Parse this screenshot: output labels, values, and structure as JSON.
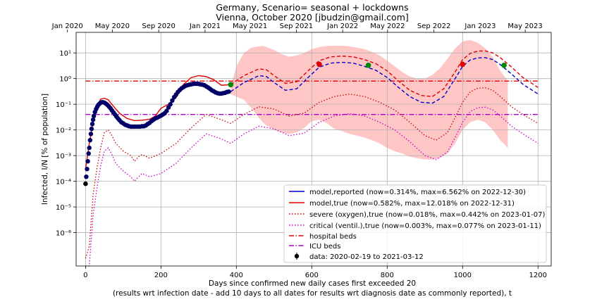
{
  "chart_data": {
    "type": "line",
    "title": "Germany, Scenario= seasonal + lockdowns",
    "subtitle": "Vienna, October 2020 [jbudzin@gmail.com]",
    "xlabel": "Days since confirmed new daily cases first exceeded 20",
    "xlabel_line2": "(results wrt infection date - add 10 days to all dates for results wrt diagnosis date as commonly reported), t",
    "ylabel": "Infected, I/N [% of population]",
    "xlim": [
      -25,
      1235
    ],
    "ylim_log10": [
      -7.3,
      1.8
    ],
    "y_scale": "log",
    "grid": true,
    "legend_position": "lower-right",
    "x_ticks": [
      {
        "value": 0,
        "label": "0"
      },
      {
        "value": 200,
        "label": "200"
      },
      {
        "value": 400,
        "label": "400"
      },
      {
        "value": 600,
        "label": "600"
      },
      {
        "value": 800,
        "label": "800"
      },
      {
        "value": 1000,
        "label": "1000"
      },
      {
        "value": 1200,
        "label": "1200"
      }
    ],
    "y_ticks": [
      {
        "value": -6,
        "label": "10⁻⁶"
      },
      {
        "value": -5,
        "label": "10⁻⁵"
      },
      {
        "value": -4,
        "label": "10⁻⁴"
      },
      {
        "value": -3,
        "label": "10⁻³"
      },
      {
        "value": -2,
        "label": "10⁻²"
      },
      {
        "value": -1,
        "label": "10⁻¹"
      },
      {
        "value": 0,
        "label": "10⁰"
      },
      {
        "value": 1,
        "label": "10¹"
      }
    ],
    "top_axis_ticks": [
      {
        "value": -48,
        "label": "Jan 2020"
      },
      {
        "value": 71,
        "label": "May 2020"
      },
      {
        "value": 194,
        "label": "Sep 2020"
      },
      {
        "value": 317,
        "label": "Jan 2021"
      },
      {
        "value": 436,
        "label": "May 2021"
      },
      {
        "value": 559,
        "label": "Sep 2021"
      },
      {
        "value": 682,
        "label": "Jan 2022"
      },
      {
        "value": 801,
        "label": "May 2022"
      },
      {
        "value": 924,
        "label": "Sep 2022"
      },
      {
        "value": 1047,
        "label": "Jan 2023"
      },
      {
        "value": 1166,
        "label": "May 2023"
      }
    ],
    "series": [
      {
        "key": "reported",
        "name": "model,reported (now=0.314%, max=6.562% on 2022-12-30)",
        "color": "#0000cc",
        "style": "dashed-after-now",
        "x": [
          0,
          10,
          20,
          30,
          40,
          50,
          60,
          75,
          90,
          110,
          130,
          150,
          170,
          185,
          200,
          220,
          240,
          260,
          280,
          300,
          320,
          340,
          360,
          385,
          420,
          460,
          480,
          500,
          530,
          560,
          590,
          620,
          650,
          680,
          710,
          740,
          770,
          800,
          830,
          860,
          890,
          920,
          950,
          980,
          1000,
          1020,
          1040,
          1060,
          1080,
          1100,
          1130,
          1160,
          1200
        ],
        "y": [
          0.0002,
          0.0015,
          0.008,
          0.04,
          0.09,
          0.12,
          0.1,
          0.05,
          0.03,
          0.02,
          0.014,
          0.015,
          0.014,
          0.018,
          0.03,
          0.04,
          0.09,
          0.3,
          0.55,
          0.65,
          0.6,
          0.5,
          0.3,
          0.31,
          0.7,
          1.3,
          1.2,
          0.7,
          0.35,
          0.4,
          1.1,
          2.8,
          4.0,
          4.3,
          4.0,
          3.0,
          2.1,
          1.1,
          0.45,
          0.2,
          0.12,
          0.11,
          0.2,
          1.0,
          3.0,
          5.3,
          6.4,
          6.56,
          5.5,
          3.5,
          1.5,
          0.6,
          0.25
        ]
      },
      {
        "key": "true",
        "name": "model,true (now=0.582%, max=12.018% on 2022-12-31)",
        "color": "#dd0000",
        "style": "solid-then-dashed",
        "x": [
          0,
          10,
          20,
          30,
          40,
          50,
          60,
          75,
          90,
          110,
          130,
          150,
          170,
          185,
          200,
          220,
          240,
          260,
          280,
          300,
          320,
          340,
          360,
          385,
          420,
          460,
          480,
          500,
          530,
          560,
          590,
          620,
          650,
          680,
          710,
          740,
          770,
          800,
          830,
          860,
          890,
          920,
          950,
          980,
          1000,
          1020,
          1040,
          1060,
          1080,
          1100,
          1130,
          1160,
          1200
        ],
        "y": [
          0.0003,
          0.003,
          0.02,
          0.08,
          0.16,
          0.17,
          0.15,
          0.08,
          0.045,
          0.028,
          0.023,
          0.024,
          0.026,
          0.035,
          0.07,
          0.1,
          0.18,
          0.6,
          1.1,
          1.3,
          1.2,
          0.9,
          0.55,
          0.58,
          1.3,
          2.4,
          2.2,
          1.3,
          0.65,
          0.75,
          2.0,
          5.0,
          7.0,
          7.5,
          7.0,
          5.5,
          3.8,
          2.0,
          0.8,
          0.35,
          0.22,
          0.2,
          0.4,
          1.8,
          5.5,
          9.5,
          11.8,
          12.0,
          10.0,
          6.5,
          2.8,
          1.1,
          0.45
        ]
      },
      {
        "key": "severe",
        "name": "severe (oxygen),true (now=0.018%, max=0.442% on 2023-01-07)",
        "color": "#cc0000",
        "style": "dotted",
        "x": [
          0,
          10,
          20,
          30,
          40,
          50,
          60,
          70,
          80,
          100,
          120,
          130,
          140,
          150,
          170,
          200,
          240,
          280,
          320,
          360,
          385,
          420,
          460,
          500,
          540,
          580,
          620,
          660,
          700,
          740,
          780,
          820,
          860,
          900,
          930,
          960,
          980,
          1000,
          1020,
          1040,
          1060,
          1080,
          1100,
          1130,
          1160,
          1200
        ],
        "y": [
          1e-07,
          3e-07,
          3e-05,
          0.0003,
          0.002,
          0.008,
          0.01,
          0.006,
          0.003,
          0.0015,
          0.001,
          0.0006,
          0.0009,
          0.0011,
          0.0008,
          0.0012,
          0.003,
          0.012,
          0.04,
          0.025,
          0.018,
          0.04,
          0.08,
          0.065,
          0.035,
          0.045,
          0.12,
          0.2,
          0.25,
          0.2,
          0.12,
          0.06,
          0.02,
          0.006,
          0.004,
          0.008,
          0.03,
          0.12,
          0.3,
          0.42,
          0.44,
          0.35,
          0.2,
          0.08,
          0.04,
          0.018
        ]
      },
      {
        "key": "critical",
        "name": "critical (ventil.),true (now=0.003%, max=0.077% on 2023-01-11)",
        "color": "#cc00cc",
        "style": "dotted",
        "x": [
          0,
          10,
          20,
          30,
          40,
          50,
          60,
          70,
          80,
          100,
          120,
          130,
          140,
          150,
          170,
          200,
          240,
          280,
          320,
          360,
          385,
          420,
          460,
          500,
          540,
          580,
          620,
          660,
          700,
          740,
          780,
          820,
          860,
          900,
          930,
          960,
          980,
          1000,
          1020,
          1040,
          1060,
          1080,
          1100,
          1130,
          1160,
          1200
        ],
        "y": [
          1e-08,
          5e-08,
          5e-06,
          5e-05,
          0.0004,
          0.0015,
          0.002,
          0.0011,
          0.0005,
          0.00025,
          0.00015,
          0.0001,
          0.00015,
          0.0002,
          0.00015,
          0.0002,
          0.0005,
          0.002,
          0.007,
          0.0045,
          0.003,
          0.007,
          0.014,
          0.011,
          0.006,
          0.0075,
          0.02,
          0.035,
          0.043,
          0.035,
          0.02,
          0.01,
          0.0035,
          0.001,
          0.0007,
          0.0014,
          0.005,
          0.02,
          0.052,
          0.073,
          0.077,
          0.06,
          0.035,
          0.014,
          0.007,
          0.003
        ]
      }
    ],
    "hospital_beds": {
      "name": "hospital beds",
      "color": "#dd0000",
      "value": 0.8,
      "x_range": [
        0,
        1200
      ]
    },
    "icu_beds": {
      "name": "ICU beds",
      "color": "#aa00cc",
      "value": 0.04,
      "x_range": [
        0,
        1200
      ]
    },
    "uncertainty_band": {
      "color": "#ffb3b3",
      "x": [
        385,
        400,
        420,
        440,
        460,
        470,
        480,
        500,
        520,
        540,
        560,
        580,
        600,
        620,
        640,
        660,
        680,
        700,
        720,
        740,
        760,
        780,
        800,
        820,
        840,
        860,
        880,
        900,
        920,
        940,
        960,
        980,
        1000,
        1020,
        1040,
        1060,
        1080,
        1100,
        1120
      ],
      "upper": [
        0.5,
        3,
        10,
        16,
        18,
        18.5,
        17,
        13,
        9,
        7,
        8,
        10,
        14,
        17,
        18.5,
        19,
        19,
        18,
        16,
        14,
        11,
        8,
        5,
        3,
        1.8,
        1.2,
        1.0,
        1.0,
        1.4,
        2.5,
        6,
        15,
        28,
        32,
        25,
        15,
        7,
        2,
        0.8
      ],
      "lower": [
        0.25,
        0.2,
        0.15,
        0.07,
        0.03,
        0.02,
        0.015,
        0.01,
        0.008,
        0.007,
        0.008,
        0.012,
        0.022,
        0.025,
        0.018,
        0.011,
        0.009,
        0.007,
        0.006,
        0.005,
        0.004,
        0.003,
        0.002,
        0.0015,
        0.0012,
        0.0009,
        0.0008,
        0.0007,
        0.0007,
        0.0008,
        0.0012,
        0.003,
        0.01,
        0.02,
        0.025,
        0.02,
        0.01,
        0.004,
        0.002
      ]
    },
    "event_markers": [
      {
        "x": 385,
        "y": 0.58,
        "color": "#008800"
      },
      {
        "x": 620,
        "y": 3.6,
        "color": "#dd0000"
      },
      {
        "x": 750,
        "y": 3.3,
        "color": "#008800"
      },
      {
        "x": 1000,
        "y": 3.6,
        "color": "#dd0000"
      },
      {
        "x": 1110,
        "y": 3.3,
        "color": "#008800"
      }
    ],
    "data_points": {
      "name": "data: 2020-02-19 to 2021-03-12",
      "color": "#000000",
      "marker_color": "#000066",
      "x": [
        0,
        2,
        4,
        6,
        8,
        10,
        12,
        14,
        16,
        18,
        20,
        22,
        25,
        28,
        31,
        34,
        37,
        40,
        43,
        46,
        50,
        54,
        58,
        62,
        66,
        70,
        74,
        78,
        82,
        86,
        90,
        95,
        100,
        105,
        110,
        115,
        120,
        125,
        130,
        135,
        140,
        145,
        150,
        155,
        160,
        165,
        170,
        175,
        180,
        185,
        190,
        195,
        200,
        205,
        210,
        215,
        220,
        225,
        230,
        235,
        240,
        245,
        250,
        255,
        260,
        265,
        270,
        275,
        280,
        285,
        290,
        295,
        300,
        305,
        310,
        315,
        320,
        325,
        330,
        335,
        340,
        345,
        350,
        355,
        360,
        365,
        370,
        375,
        380
      ],
      "y": [
        8e-05,
        0.00015,
        0.0003,
        0.0006,
        0.0012,
        0.002,
        0.004,
        0.007,
        0.011,
        0.017,
        0.025,
        0.035,
        0.05,
        0.065,
        0.08,
        0.095,
        0.105,
        0.115,
        0.12,
        0.12,
        0.115,
        0.105,
        0.095,
        0.082,
        0.07,
        0.058,
        0.048,
        0.04,
        0.033,
        0.028,
        0.024,
        0.02,
        0.018,
        0.016,
        0.015,
        0.014,
        0.0135,
        0.0135,
        0.0135,
        0.0135,
        0.0135,
        0.0135,
        0.014,
        0.014,
        0.015,
        0.017,
        0.019,
        0.022,
        0.025,
        0.028,
        0.03,
        0.033,
        0.036,
        0.04,
        0.045,
        0.055,
        0.075,
        0.1,
        0.14,
        0.19,
        0.24,
        0.3,
        0.36,
        0.42,
        0.47,
        0.52,
        0.55,
        0.58,
        0.6,
        0.62,
        0.63,
        0.63,
        0.62,
        0.6,
        0.58,
        0.55,
        0.5,
        0.45,
        0.4,
        0.35,
        0.32,
        0.29,
        0.27,
        0.26,
        0.26,
        0.27,
        0.28,
        0.3,
        0.31
      ]
    }
  }
}
